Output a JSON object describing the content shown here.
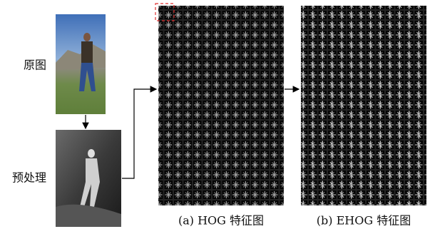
{
  "labels": {
    "original": "原图",
    "preprocessed": "预处理"
  },
  "captions": {
    "hog": "(a) HOG 特征图",
    "ehog": "(b) EHOG 特征图"
  }
}
